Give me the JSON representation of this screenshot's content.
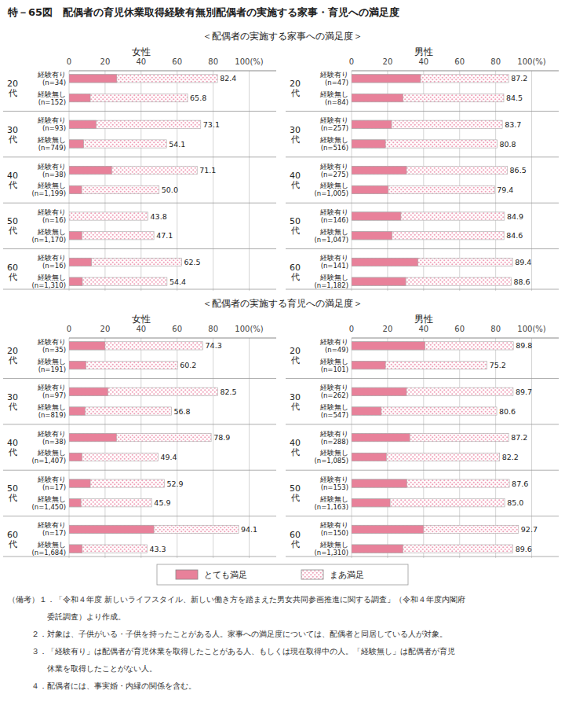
{
  "title": "特－65図　配偶者の育児休業取得経験有無別配偶者の実施する家事・育児への満足度",
  "annotations": [
    "（備考）１．「令和４年度 新しいライフスタイル、新しい働き方を踏まえた男女共同参画推進に関する調査」（令和４年度内閣府",
    "　　　　　委託調査）より作成。",
    "　　　２．対象は、子供がいる・子供を持ったことがある人。家事への満足度については、配偶者と同居している人が対象。",
    "　　　３．「経験有り」は配偶者が育児休業を取得したことがある人、もしくは現在取得中の人。「経験無し」は配偶者が育児",
    "　　　　　休業を取得したことがない人。",
    "　　　４．配偶者には、事実婚・内縁の関係を含む。"
  ],
  "chart_data": [
    {
      "type": "bar",
      "orientation": "horizontal",
      "subtitle": "＜配偶者の実施する家事への満足度＞",
      "title": "女性",
      "groups": [
        "20\n代",
        "30\n代",
        "40\n代",
        "50\n代",
        "60\n代"
      ],
      "categories": [
        "経験有り\n(n=34)",
        "経験無し\n(n=152)",
        "経験有り\n(n=93)",
        "経験無し\n(n=749)",
        "経験有り\n(n=38)",
        "経験無し\n(n=1,199)",
        "経験有り\n(n=16)",
        "経験無し\n(n=1,170)",
        "経験有り\n(n=16)",
        "経験無し\n(n=1,310)"
      ],
      "series": [
        {
          "name": "とても満足",
          "color": "#E8819A",
          "values": [
            26.5,
            11.8,
            15.1,
            8.1,
            23.7,
            7.0,
            0.0,
            7.1,
            12.5,
            7.4
          ]
        },
        {
          "name": "まあ満足",
          "color": "#F0A0B8",
          "values": [
            82.4,
            65.8,
            73.1,
            54.1,
            71.1,
            50.0,
            43.8,
            47.1,
            62.5,
            54.4
          ],
          "value_labels": [
            "82.4",
            "65.8",
            "73.1",
            "54.1",
            "71.1",
            "50.0",
            "43.8",
            "47.1",
            "62.5",
            "54.4"
          ],
          "data_labels": true
        }
      ],
      "xlim": [
        0,
        115
      ],
      "xticks": [
        0,
        20,
        40,
        60,
        80,
        {
          "value": 100,
          "label": "100(%)"
        }
      ],
      "grid": true,
      "legend": "bottom"
    },
    {
      "type": "bar",
      "orientation": "horizontal",
      "title": "男性",
      "groups": [
        "20\n代",
        "30\n代",
        "40\n代",
        "50\n代",
        "60\n代"
      ],
      "categories": [
        "経験有り\n(n=47)",
        "経験無し\n(n=84)",
        "経験有り\n(n=257)",
        "経験無し\n(n=516)",
        "経験有り\n(n=275)",
        "経験無し\n(n=1,005)",
        "経験有り\n(n=146)",
        "経験無し\n(n=1,047)",
        "経験有り\n(n=141)",
        "経験無し\n(n=1,182)"
      ],
      "series": [
        {
          "name": "とても満足",
          "color": "#E8819A",
          "values": [
            38.3,
            28.6,
            22.2,
            18.8,
            30.5,
            20.4,
            27.4,
            22.5,
            36.9,
            30.1
          ]
        },
        {
          "name": "まあ満足",
          "color": "#F0A0B8",
          "values": [
            87.2,
            84.5,
            83.7,
            80.8,
            86.5,
            79.4,
            84.9,
            84.6,
            89.4,
            88.6
          ],
          "value_labels": [
            "87.2",
            "84.5",
            "83.7",
            "80.8",
            "86.5",
            "79.4",
            "84.9",
            "84.6",
            "89.4",
            "88.6"
          ],
          "data_labels": true
        }
      ],
      "xlim": [
        0,
        115
      ],
      "xticks": [
        0,
        20,
        40,
        60,
        80,
        {
          "value": 100,
          "label": "100(%)"
        }
      ],
      "grid": true
    },
    {
      "type": "bar",
      "orientation": "horizontal",
      "subtitle": "＜配偶者の実施する育児への満足度＞",
      "title": "女性",
      "groups": [
        "20\n代",
        "30\n代",
        "40\n代",
        "50\n代",
        "60\n代"
      ],
      "categories": [
        "経験有り\n(n=35)",
        "経験無し\n(n=191)",
        "経験有り\n(n=97)",
        "経験無し\n(n=819)",
        "経験有り\n(n=38)",
        "経験無し\n(n=1,407)",
        "経験有り\n(n=17)",
        "経験無し\n(n=1,450)",
        "経験有り\n(n=17)",
        "経験無し\n(n=1,684)"
      ],
      "series": [
        {
          "name": "とても満足",
          "color": "#E8819A",
          "values": [
            20.0,
            9.4,
            21.6,
            8.9,
            26.3,
            7.2,
            11.8,
            6.6,
            47.1,
            7.3
          ]
        },
        {
          "name": "まあ満足",
          "color": "#F0A0B8",
          "values": [
            74.3,
            60.2,
            82.5,
            56.8,
            78.9,
            49.4,
            52.9,
            45.9,
            94.1,
            43.3
          ],
          "value_labels": [
            "74.3",
            "60.2",
            "82.5",
            "56.8",
            "78.9",
            "49.4",
            "52.9",
            "45.9",
            "94.1",
            "43.3"
          ],
          "data_labels": true
        }
      ],
      "xlim": [
        0,
        115
      ],
      "xticks": [
        0,
        20,
        40,
        60,
        80,
        {
          "value": 100,
          "label": "100(%)"
        }
      ],
      "grid": true
    },
    {
      "type": "bar",
      "orientation": "horizontal",
      "title": "男性",
      "groups": [
        "20\n代",
        "30\n代",
        "40\n代",
        "50\n代",
        "60\n代"
      ],
      "categories": [
        "経験有り\n(n=49)",
        "経験無し\n(n=101)",
        "経験有り\n(n=262)",
        "経験無し\n(n=547)",
        "経験有り\n(n=288)",
        "経験無し\n(n=1,085)",
        "経験有り\n(n=153)",
        "経験無し\n(n=1,163)",
        "経験有り\n(n=150)",
        "経験無し\n(n=1,310)"
      ],
      "series": [
        {
          "name": "とても満足",
          "color": "#E8819A",
          "values": [
            40.8,
            18.8,
            30.5,
            16.5,
            32.3,
            19.3,
            30.7,
            21.4,
            40.0,
            28.5
          ]
        },
        {
          "name": "まあ満足",
          "color": "#F0A0B8",
          "values": [
            89.8,
            75.2,
            89.7,
            80.6,
            87.2,
            82.2,
            87.6,
            85.0,
            92.7,
            89.6
          ],
          "value_labels": [
            "89.8",
            "75.2",
            "89.7",
            "80.6",
            "87.2",
            "82.2",
            "87.6",
            "85.0",
            "92.7",
            "89.6"
          ],
          "data_labels": true
        }
      ],
      "xlim": [
        0,
        115
      ],
      "xticks": [
        0,
        20,
        40,
        60,
        80,
        {
          "value": 100,
          "label": "100(%)"
        }
      ],
      "grid": true
    }
  ]
}
